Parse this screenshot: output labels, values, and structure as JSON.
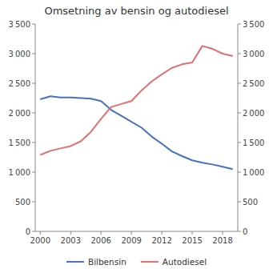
{
  "chart_data": {
    "type": "line",
    "title": "Omsetning av bensin og autodiesel",
    "x": [
      2000,
      2001,
      2002,
      2003,
      2004,
      2005,
      2006,
      2007,
      2008,
      2009,
      2010,
      2011,
      2012,
      2013,
      2014,
      2015,
      2016,
      2017,
      2018,
      2019
    ],
    "series": [
      {
        "name": "Bilbensin",
        "color": "#4472C4",
        "values": [
          2230,
          2280,
          2260,
          2260,
          2250,
          2240,
          2200,
          2050,
          1950,
          1850,
          1750,
          1600,
          1480,
          1350,
          1270,
          1200,
          1160,
          1130,
          1090,
          1050
        ]
      },
      {
        "name": "Autodiesel",
        "color": "#E07070",
        "axis": "y2",
        "values": [
          1290,
          1360,
          1400,
          1440,
          1520,
          1680,
          1900,
          2100,
          2150,
          2200,
          2380,
          2530,
          2650,
          2760,
          2820,
          2850,
          3130,
          3080,
          3000,
          2960
        ]
      }
    ],
    "xlim": [
      1999.5,
      2019.5
    ],
    "xticks": [
      2000,
      2003,
      2006,
      2009,
      2012,
      2015,
      2018
    ],
    "ylim": [
      0,
      3500
    ],
    "yticks": [
      0,
      500,
      {
        "value": 1000,
        "label": "1 000"
      },
      {
        "value": 1500,
        "label": "1 500"
      },
      {
        "value": 2000,
        "label": "2 000"
      },
      {
        "value": 2500,
        "label": "2 500"
      },
      {
        "value": 3000,
        "label": "3 000"
      },
      {
        "value": 3500,
        "label": "3 500"
      }
    ],
    "y2lim": [
      0,
      3500
    ],
    "y2ticks": [
      0,
      500,
      {
        "value": 1000,
        "label": "1 000"
      },
      {
        "value": 1500,
        "label": "1 500"
      },
      {
        "value": 2000,
        "label": "2 000"
      },
      {
        "value": 2500,
        "label": "2 500"
      },
      {
        "value": 3000,
        "label": "3 000"
      },
      {
        "value": 3500,
        "label": "3 500"
      }
    ],
    "grid": false,
    "legend": "bottom"
  }
}
